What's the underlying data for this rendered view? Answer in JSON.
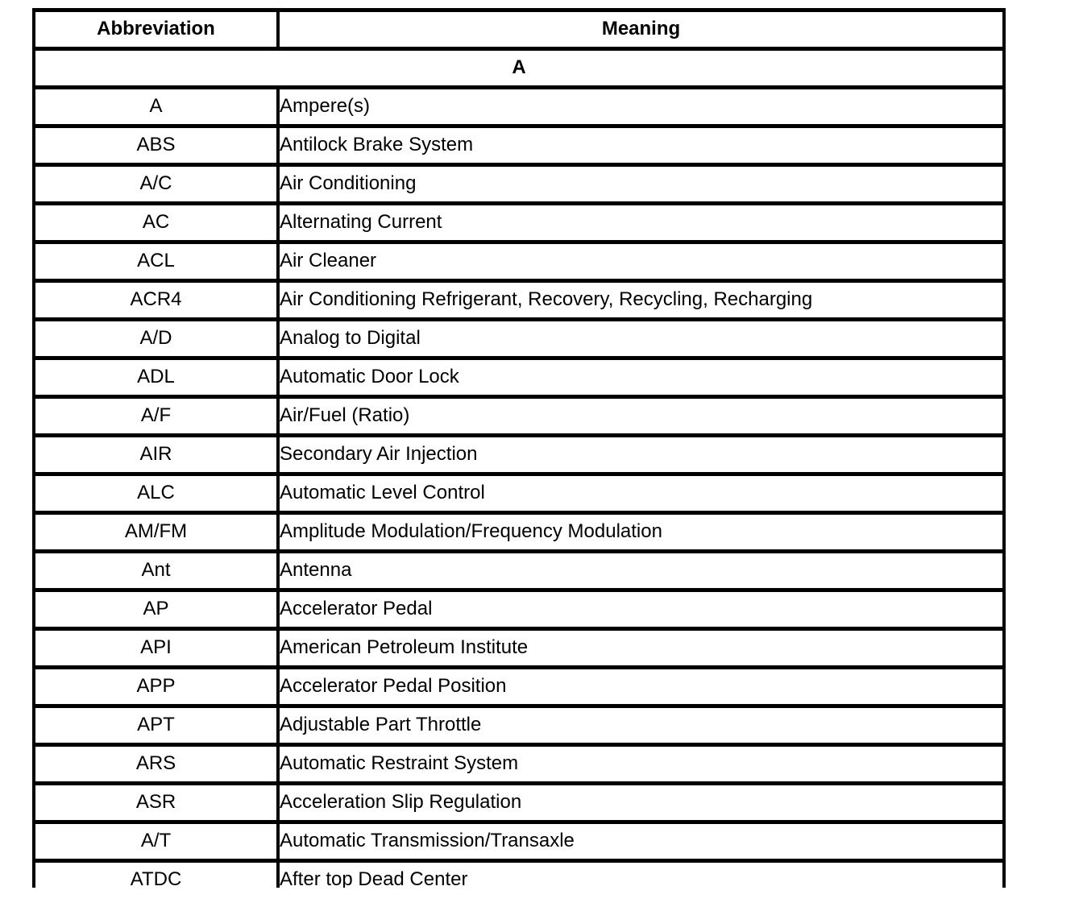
{
  "page": {
    "background_color": "#ffffff",
    "line_color": "#000000"
  },
  "table": {
    "column_headers": {
      "abbreviation": "Abbreviation",
      "meaning": "Meaning"
    },
    "section_header": "A",
    "rows": [
      {
        "abbreviation": "A",
        "meaning": "Ampere(s)"
      },
      {
        "abbreviation": "ABS",
        "meaning": "Antilock Brake System"
      },
      {
        "abbreviation": "A/C",
        "meaning": "Air Conditioning"
      },
      {
        "abbreviation": "AC",
        "meaning": "Alternating Current"
      },
      {
        "abbreviation": "ACL",
        "meaning": "Air Cleaner"
      },
      {
        "abbreviation": "ACR4",
        "meaning": "Air Conditioning Refrigerant, Recovery, Recycling, Recharging"
      },
      {
        "abbreviation": "A/D",
        "meaning": "Analog to Digital"
      },
      {
        "abbreviation": "ADL",
        "meaning": "Automatic Door Lock"
      },
      {
        "abbreviation": "A/F",
        "meaning": "Air/Fuel (Ratio)"
      },
      {
        "abbreviation": "AIR",
        "meaning": "Secondary Air Injection"
      },
      {
        "abbreviation": "ALC",
        "meaning": "Automatic Level Control"
      },
      {
        "abbreviation": "AM/FM",
        "meaning": "Amplitude Modulation/Frequency Modulation"
      },
      {
        "abbreviation": "Ant",
        "meaning": "Antenna"
      },
      {
        "abbreviation": "AP",
        "meaning": "Accelerator Pedal"
      },
      {
        "abbreviation": "API",
        "meaning": "American Petroleum Institute"
      },
      {
        "abbreviation": "APP",
        "meaning": "Accelerator Pedal Position"
      },
      {
        "abbreviation": "APT",
        "meaning": "Adjustable Part Throttle"
      },
      {
        "abbreviation": "ARS",
        "meaning": "Automatic Restraint System"
      },
      {
        "abbreviation": "ASR",
        "meaning": "Acceleration Slip Regulation"
      },
      {
        "abbreviation": "A/T",
        "meaning": "Automatic Transmission/Transaxle"
      },
      {
        "abbreviation": "ATDC",
        "meaning": "After top Dead Center"
      }
    ]
  }
}
